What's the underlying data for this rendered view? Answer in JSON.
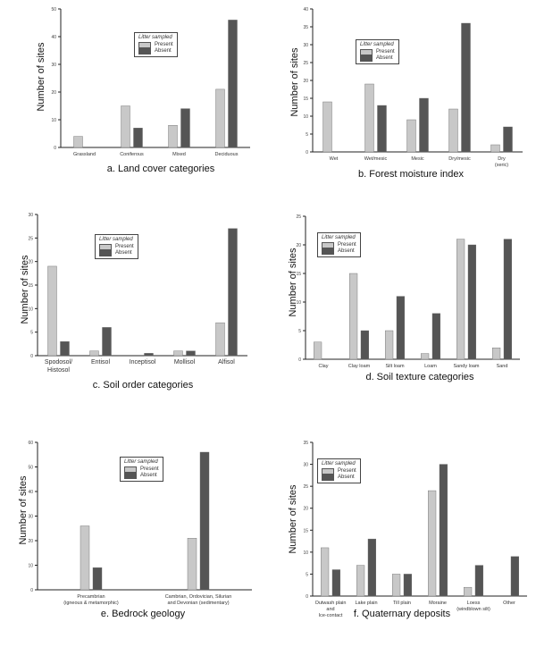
{
  "colors": {
    "present": "#c8c8c8",
    "absent": "#555555",
    "axis": "#222222"
  },
  "chart_data": [
    {
      "type": "bar",
      "caption": "a. Land cover categories",
      "ylabel": "Number of sites",
      "legend": {
        "title": "Litter sampled",
        "items": [
          "Present",
          "Absent"
        ]
      },
      "categories": [
        "Grassland",
        "Coniferous",
        "Mixed",
        "Deciduous"
      ],
      "ylim": [
        0,
        50
      ],
      "yticks": [
        0,
        10,
        20,
        30,
        40,
        50
      ],
      "series": [
        {
          "name": "Present",
          "values": [
            4,
            15,
            8,
            21
          ]
        },
        {
          "name": "Absent",
          "values": [
            0,
            7,
            14,
            46
          ]
        }
      ]
    },
    {
      "type": "bar",
      "caption": "b. Forest moisture index",
      "ylabel": "Number of sites",
      "legend": {
        "title": "Litter sampled",
        "items": [
          "Present",
          "Absent"
        ]
      },
      "categories": [
        "Wet",
        "Wet/mesic",
        "Mesic",
        "Dry/mesic",
        "Dry\n(xeric)"
      ],
      "ylim": [
        0,
        40
      ],
      "yticks": [
        0,
        5,
        10,
        15,
        20,
        25,
        30,
        35,
        40
      ],
      "series": [
        {
          "name": "Present",
          "values": [
            14,
            19,
            9,
            12,
            2
          ]
        },
        {
          "name": "Absent",
          "values": [
            0,
            13,
            15,
            36,
            7
          ]
        }
      ]
    },
    {
      "type": "bar",
      "caption": "c. Soil order categories",
      "ylabel": "Number of sites",
      "legend": {
        "title": "Litter sampled",
        "items": [
          "Present",
          "Absent"
        ]
      },
      "categories": [
        "Spodosol/\nHistosol",
        "Entisol",
        "Inceptisol",
        "Mollisol",
        "Alfisol"
      ],
      "ylim": [
        0,
        30
      ],
      "yticks": [
        0,
        5,
        10,
        15,
        20,
        25,
        30
      ],
      "series": [
        {
          "name": "Present",
          "values": [
            19,
            1,
            0,
            1,
            7
          ]
        },
        {
          "name": "Absent",
          "values": [
            3,
            6,
            0.5,
            1,
            27
          ]
        }
      ]
    },
    {
      "type": "bar",
      "caption": "d. Soil texture categories",
      "ylabel": "Number of sites",
      "legend": {
        "title": "Litter sampled",
        "items": [
          "Present",
          "Absent"
        ]
      },
      "categories": [
        "Clay",
        "Clay loam",
        "Silt loam",
        "Loam",
        "Sandy loam",
        "Sand"
      ],
      "ylim": [
        0,
        25
      ],
      "yticks": [
        0,
        5,
        10,
        15,
        20,
        25
      ],
      "series": [
        {
          "name": "Present",
          "values": [
            3,
            15,
            5,
            1,
            21,
            2
          ]
        },
        {
          "name": "Absent",
          "values": [
            0,
            5,
            11,
            8,
            20,
            21
          ]
        }
      ]
    },
    {
      "type": "bar",
      "caption": "e. Bedrock geology",
      "ylabel": "Number of sites",
      "legend": {
        "title": "Litter sampled",
        "items": [
          "Present",
          "Absent"
        ]
      },
      "categories": [
        "Precambrian\n(igneous & metamorphic)",
        "Cambrian, Ordovician, Silurian\nand Devonian (sedimentary)"
      ],
      "ylim": [
        0,
        60
      ],
      "yticks": [
        0,
        10,
        20,
        30,
        40,
        50,
        60
      ],
      "series": [
        {
          "name": "Present",
          "values": [
            26,
            21
          ]
        },
        {
          "name": "Absent",
          "values": [
            9,
            56
          ]
        }
      ]
    },
    {
      "type": "bar",
      "caption": "f. Quaternary deposits",
      "ylabel": "Number of sites",
      "legend": {
        "title": "Litter sampled",
        "items": [
          "Present",
          "Absent"
        ]
      },
      "categories": [
        "Outwash plain\nand\nIce-contact",
        "Lake plain",
        "Till plain",
        "Moraine",
        "Loess\n(windblown silt)",
        "Other"
      ],
      "ylim": [
        0,
        35
      ],
      "yticks": [
        0,
        5,
        10,
        15,
        20,
        25,
        30,
        35
      ],
      "series": [
        {
          "name": "Present",
          "values": [
            11,
            7,
            5,
            24,
            2,
            0
          ]
        },
        {
          "name": "Absent",
          "values": [
            6,
            13,
            5,
            30,
            7,
            9
          ]
        }
      ]
    }
  ]
}
